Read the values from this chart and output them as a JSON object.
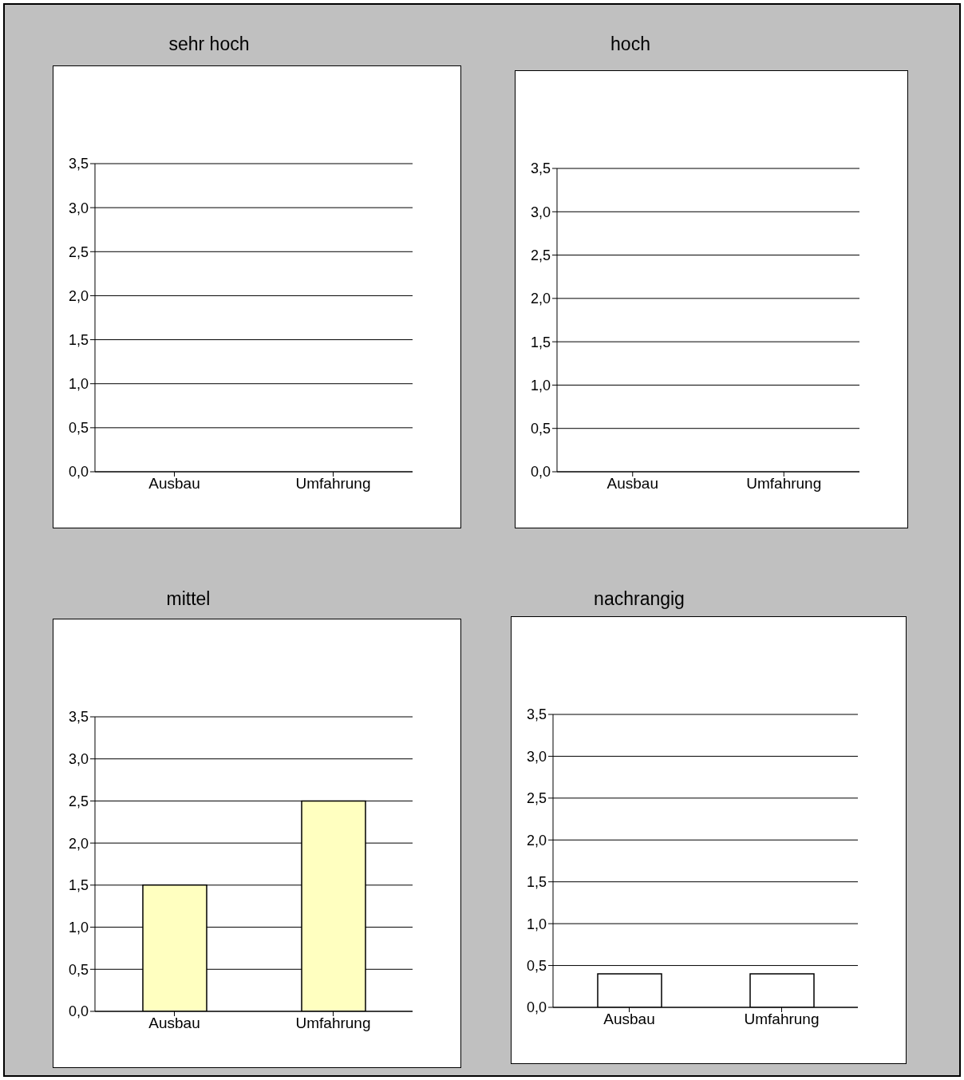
{
  "chart_data": [
    {
      "type": "bar",
      "title": "sehr hoch",
      "categories": [
        "Ausbau",
        "Umfahrung"
      ],
      "values": [
        0,
        0
      ],
      "color": "#c00000",
      "ylim": [
        0,
        3.5
      ],
      "yticks": [
        {
          "value": 0,
          "label": "0,0"
        },
        {
          "value": 0.5,
          "label": "0,5"
        },
        {
          "value": 1,
          "label": "1,0"
        },
        {
          "value": 1.5,
          "label": "1,5"
        },
        {
          "value": 2,
          "label": "2,0"
        },
        {
          "value": 2.5,
          "label": "2,5"
        },
        {
          "value": 3,
          "label": "3,0"
        },
        {
          "value": 3.5,
          "label": "3,5"
        }
      ],
      "grid": "y"
    },
    {
      "type": "bar",
      "title": "hoch",
      "categories": [
        "Ausbau",
        "Umfahrung"
      ],
      "values": [
        0,
        0
      ],
      "color": "#c06060",
      "ylim": [
        0,
        3.5
      ],
      "yticks": [
        {
          "value": 0,
          "label": "0,0"
        },
        {
          "value": 0.5,
          "label": "0,5"
        },
        {
          "value": 1,
          "label": "1,0"
        },
        {
          "value": 1.5,
          "label": "1,5"
        },
        {
          "value": 2,
          "label": "2,0"
        },
        {
          "value": 2.5,
          "label": "2,5"
        },
        {
          "value": 3,
          "label": "3,0"
        },
        {
          "value": 3.5,
          "label": "3,5"
        }
      ],
      "grid": "y"
    },
    {
      "type": "bar",
      "title": "mittel",
      "categories": [
        "Ausbau",
        "Umfahrung"
      ],
      "values": [
        1.5,
        2.5
      ],
      "color": "#ffffc0",
      "ylim": [
        0,
        3.5
      ],
      "yticks": [
        {
          "value": 0,
          "label": "0,0"
        },
        {
          "value": 0.5,
          "label": "0,5"
        },
        {
          "value": 1,
          "label": "1,0"
        },
        {
          "value": 1.5,
          "label": "1,5"
        },
        {
          "value": 2,
          "label": "2,0"
        },
        {
          "value": 2.5,
          "label": "2,5"
        },
        {
          "value": 3,
          "label": "3,0"
        },
        {
          "value": 3.5,
          "label": "3,5"
        }
      ],
      "grid": "y"
    },
    {
      "type": "bar",
      "title": "nachrangig",
      "categories": [
        "Ausbau",
        "Umfahrung"
      ],
      "values": [
        0.4,
        0.4
      ],
      "color": "#ffffff",
      "ylim": [
        0,
        3.5
      ],
      "yticks": [
        {
          "value": 0,
          "label": "0,0"
        },
        {
          "value": 0.5,
          "label": "0,5"
        },
        {
          "value": 1,
          "label": "1,0"
        },
        {
          "value": 1.5,
          "label": "1,5"
        },
        {
          "value": 2,
          "label": "2,0"
        },
        {
          "value": 2.5,
          "label": "2,5"
        },
        {
          "value": 3,
          "label": "3,0"
        },
        {
          "value": 3.5,
          "label": "3,5"
        }
      ],
      "grid": "y"
    }
  ]
}
